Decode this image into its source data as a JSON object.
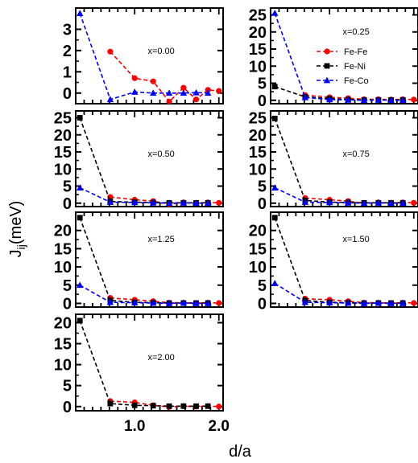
{
  "figure": {
    "ylabel": "J",
    "ylabel_sub": "ij",
    "ylabel_unit": "(meV)",
    "xlabel": "d/a"
  },
  "legend": [
    {
      "name": "Fe-Fe",
      "color": "#ff0000",
      "marker": "circle"
    },
    {
      "name": "Fe-Ni",
      "color": "#000000",
      "marker": "square"
    },
    {
      "name": "Fe-Co",
      "color": "#0000ff",
      "marker": "triangle"
    }
  ],
  "chart_data": [
    {
      "type": "line",
      "label": "x=0.00",
      "xlim": [
        0.3,
        2.05
      ],
      "ylim": [
        -0.5,
        4.0
      ],
      "yticks": [
        0,
        1,
        2,
        3
      ],
      "xticks": [
        1.0,
        2.0
      ],
      "show_xtick_labels": false,
      "series": [
        {
          "name": "Fe-Fe",
          "x": [
            0.71,
            1.0,
            1.22,
            1.41,
            1.58,
            1.73,
            1.87,
            2.0
          ],
          "y": [
            1.95,
            0.7,
            0.55,
            -0.4,
            0.25,
            -0.3,
            0.15,
            0.1
          ]
        },
        {
          "name": "Fe-Co",
          "x": [
            0.35,
            0.71,
            1.0,
            1.22,
            1.41,
            1.58,
            1.73,
            1.87
          ],
          "y": [
            3.75,
            -0.3,
            0.05,
            0.0,
            0.0,
            0.0,
            0.02,
            0.0
          ]
        }
      ]
    },
    {
      "type": "line",
      "label": "x=0.25",
      "legend": true,
      "xlim": [
        0.3,
        2.05
      ],
      "ylim": [
        -1,
        27
      ],
      "yticks": [
        0,
        5,
        10,
        15,
        20,
        25
      ],
      "xticks": [
        1.0,
        2.0
      ],
      "show_xtick_labels": false,
      "series": [
        {
          "name": "Fe-Fe",
          "x": [
            0.71,
            1.0,
            1.22,
            1.41,
            1.58,
            1.73,
            1.87,
            2.0
          ],
          "y": [
            1.5,
            0.9,
            0.6,
            0.3,
            0.3,
            0.2,
            0.3,
            0.2
          ]
        },
        {
          "name": "Fe-Ni",
          "x": [
            0.35,
            0.71,
            1.0,
            1.22,
            1.41,
            1.58,
            1.73,
            1.87
          ],
          "y": [
            4.0,
            1.0,
            0.5,
            0.2,
            0.1,
            0.1,
            0.1,
            0.1
          ]
        },
        {
          "name": "Fe-Co",
          "x": [
            0.35,
            0.71,
            1.0,
            1.22,
            1.41,
            1.58,
            1.73,
            1.87
          ],
          "y": [
            25.5,
            0.8,
            0.2,
            0.1,
            0.0,
            0.1,
            0.0,
            0.0
          ]
        }
      ]
    },
    {
      "type": "line",
      "label": "x=0.50",
      "xlim": [
        0.3,
        2.05
      ],
      "ylim": [
        -1,
        27
      ],
      "yticks": [
        0,
        5,
        10,
        15,
        20,
        25
      ],
      "xticks": [
        1.0,
        2.0
      ],
      "show_xtick_labels": false,
      "series": [
        {
          "name": "Fe-Fe",
          "x": [
            0.71,
            1.0,
            1.22,
            1.41,
            1.58,
            1.73,
            1.87,
            2.0
          ],
          "y": [
            1.8,
            1.0,
            0.6,
            -0.3,
            0.2,
            0.0,
            0.2,
            0.1
          ]
        },
        {
          "name": "Fe-Ni",
          "x": [
            0.35,
            0.71,
            1.0,
            1.22,
            1.41,
            1.58,
            1.73,
            1.87
          ],
          "y": [
            25.0,
            0.5,
            0.3,
            0.2,
            0.1,
            0.1,
            0.1,
            0.1
          ]
        },
        {
          "name": "Fe-Co",
          "x": [
            0.35,
            0.71,
            1.0,
            1.22,
            1.41,
            1.58,
            1.73,
            1.87
          ],
          "y": [
            4.5,
            0.3,
            0.2,
            0.1,
            0.0,
            0.1,
            0.0,
            0.0
          ]
        }
      ]
    },
    {
      "type": "line",
      "label": "x=0.75",
      "xlim": [
        0.3,
        2.05
      ],
      "ylim": [
        -1,
        27
      ],
      "yticks": [
        0,
        5,
        10,
        15,
        20,
        25
      ],
      "xticks": [
        1.0,
        2.0
      ],
      "show_xtick_labels": false,
      "series": [
        {
          "name": "Fe-Fe",
          "x": [
            0.71,
            1.0,
            1.22,
            1.41,
            1.58,
            1.73,
            1.87,
            2.0
          ],
          "y": [
            1.5,
            1.0,
            0.6,
            0.0,
            0.2,
            0.1,
            0.2,
            0.1
          ]
        },
        {
          "name": "Fe-Ni",
          "x": [
            0.35,
            0.71,
            1.0,
            1.22,
            1.41,
            1.58,
            1.73,
            1.87
          ],
          "y": [
            24.8,
            0.8,
            0.3,
            0.2,
            0.1,
            0.1,
            0.1,
            0.1
          ]
        },
        {
          "name": "Fe-Co",
          "x": [
            0.35,
            0.71,
            1.0,
            1.22,
            1.41,
            1.58,
            1.73,
            1.87
          ],
          "y": [
            4.5,
            0.3,
            0.2,
            0.1,
            0.0,
            0.1,
            0.0,
            0.0
          ]
        }
      ]
    },
    {
      "type": "line",
      "label": "x=1.25",
      "xlim": [
        0.3,
        2.05
      ],
      "ylim": [
        -1,
        25
      ],
      "yticks": [
        0,
        5,
        10,
        15,
        20
      ],
      "xticks": [
        1.0,
        2.0
      ],
      "show_xtick_labels": false,
      "series": [
        {
          "name": "Fe-Fe",
          "x": [
            0.71,
            1.0,
            1.22,
            1.41,
            1.58,
            1.73,
            1.87,
            2.0
          ],
          "y": [
            1.5,
            1.0,
            0.6,
            0.2,
            0.2,
            0.1,
            0.2,
            0.1
          ]
        },
        {
          "name": "Fe-Ni",
          "x": [
            0.35,
            0.71,
            1.0,
            1.22,
            1.41,
            1.58,
            1.73,
            1.87
          ],
          "y": [
            23.5,
            0.8,
            0.3,
            0.2,
            0.1,
            0.1,
            0.1,
            0.1
          ]
        },
        {
          "name": "Fe-Co",
          "x": [
            0.35,
            0.71,
            1.0,
            1.22,
            1.41,
            1.58,
            1.73,
            1.87
          ],
          "y": [
            5.0,
            0.3,
            0.2,
            0.1,
            0.0,
            0.1,
            0.0,
            0.0
          ]
        }
      ]
    },
    {
      "type": "line",
      "label": "x=1.50",
      "xlim": [
        0.3,
        2.05
      ],
      "ylim": [
        -1,
        25
      ],
      "yticks": [
        0,
        5,
        10,
        15,
        20
      ],
      "xticks": [
        1.0,
        2.0
      ],
      "show_xtick_labels": false,
      "series": [
        {
          "name": "Fe-Fe",
          "x": [
            0.71,
            1.0,
            1.22,
            1.41,
            1.58,
            1.73,
            1.87,
            2.0
          ],
          "y": [
            1.3,
            1.0,
            0.6,
            0.2,
            0.2,
            0.1,
            0.2,
            0.1
          ]
        },
        {
          "name": "Fe-Ni",
          "x": [
            0.35,
            0.71,
            1.0,
            1.22,
            1.41,
            1.58,
            1.73,
            1.87
          ],
          "y": [
            23.5,
            0.8,
            0.3,
            0.2,
            0.1,
            0.1,
            0.1,
            0.1
          ]
        },
        {
          "name": "Fe-Co",
          "x": [
            0.35,
            0.71,
            1.0,
            1.22,
            1.41,
            1.58,
            1.73,
            1.87
          ],
          "y": [
            5.5,
            0.3,
            0.2,
            0.1,
            0.0,
            0.1,
            0.0,
            0.0
          ]
        }
      ]
    },
    {
      "type": "line",
      "label": "x=2.00",
      "xlim": [
        0.3,
        2.05
      ],
      "ylim": [
        -1,
        22
      ],
      "yticks": [
        0,
        5,
        10,
        15,
        20
      ],
      "xticks": [
        1.0,
        2.0
      ],
      "show_xtick_labels": true,
      "xtick_labels": [
        "1.0",
        "2.0"
      ],
      "series": [
        {
          "name": "Fe-Fe",
          "x": [
            0.71,
            1.0,
            1.22,
            1.41,
            1.58,
            1.73,
            1.87,
            2.0
          ],
          "y": [
            1.3,
            1.0,
            0.3,
            -0.1,
            0.1,
            0.0,
            0.1,
            0.0
          ]
        },
        {
          "name": "Fe-Ni",
          "x": [
            0.35,
            0.71,
            1.0,
            1.22,
            1.41,
            1.58,
            1.73,
            1.87
          ],
          "y": [
            20.5,
            0.7,
            0.3,
            0.2,
            0.1,
            0.1,
            0.1,
            0.1
          ]
        }
      ]
    }
  ]
}
